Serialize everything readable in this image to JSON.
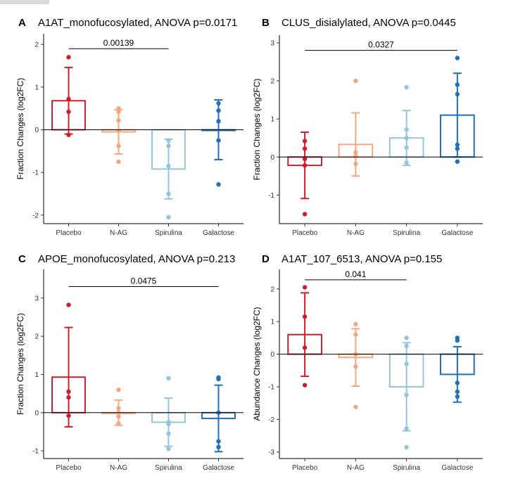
{
  "colors": {
    "Placebo": "#c8202f",
    "N-AG": "#f4a582",
    "Spirulina": "#92c5de",
    "Galactose": "#2171b5"
  },
  "chart_data": [
    {
      "type": "bar",
      "panel_letter": "A",
      "title": "A1AT_monofucosylated, ANOVA p=0.0171",
      "xlabel": "",
      "ylabel": "Fraction Changes (log2FC)",
      "categories": [
        "Placebo",
        "N-AG",
        "Spirulina",
        "Galactose"
      ],
      "ylim": [
        -2.2,
        2.25
      ],
      "yticks": [
        -2,
        -1,
        0,
        1,
        2
      ],
      "values": [
        0.68,
        -0.05,
        -0.92,
        0.0
      ],
      "errors": [
        0.78,
        0.52,
        0.7,
        0.7
      ],
      "points": [
        [
          1.7,
          0.72,
          0.42,
          -0.12
        ],
        [
          0.5,
          0.42,
          0.22,
          -0.02,
          -0.38,
          -0.75
        ],
        [
          -0.25,
          -0.38,
          -0.85,
          -1.5,
          -2.05
        ],
        [
          0.62,
          0.45,
          0.2,
          -0.25,
          -1.28
        ]
      ],
      "comparison": {
        "from": 0,
        "to": 2,
        "label": "0.00139",
        "y": 1.9
      }
    },
    {
      "type": "bar",
      "panel_letter": "B",
      "title": "CLUS_disialylated, ANOVA p=0.0445",
      "xlabel": "",
      "ylabel": "Fraction Changes (log2FC)",
      "categories": [
        "Placebo",
        "N-AG",
        "Spirulina",
        "Galactose"
      ],
      "ylim": [
        -1.75,
        3.2
      ],
      "yticks": [
        -1,
        0,
        1,
        2,
        3
      ],
      "values": [
        -0.22,
        0.33,
        0.5,
        1.1
      ],
      "errors": [
        0.87,
        0.83,
        0.72,
        1.1
      ],
      "points": [
        [
          0.42,
          0.22,
          -0.05,
          -0.22,
          -1.5
        ],
        [
          2.0,
          0.12,
          0.02,
          -0.18
        ],
        [
          1.83,
          0.72,
          0.5,
          0.25,
          -0.15
        ],
        [
          2.6,
          1.9,
          1.65,
          0.32,
          0.22,
          -0.12
        ]
      ],
      "comparison": {
        "from": 0,
        "to": 3,
        "label": "0.0327",
        "y": 2.8
      }
    },
    {
      "type": "bar",
      "panel_letter": "C",
      "title": "APOE_monofucosylated, ANOVA p=0.213",
      "xlabel": "",
      "ylabel": "Fraction Changes (log2FC)",
      "categories": [
        "Placebo",
        "N-AG",
        "Spirulina",
        "Galactose"
      ],
      "ylim": [
        -1.2,
        3.75
      ],
      "yticks": [
        -1,
        0,
        1,
        2,
        3
      ],
      "values": [
        0.93,
        0.0,
        -0.25,
        -0.15
      ],
      "errors": [
        1.3,
        0.33,
        0.63,
        0.87
      ],
      "points": [
        [
          2.82,
          0.55,
          0.4,
          -0.08
        ],
        [
          0.6,
          0.12,
          0.0,
          -0.1,
          -0.28
        ],
        [
          0.9,
          -0.25,
          -0.3,
          -0.55,
          -0.95
        ],
        [
          0.92,
          0.88,
          0.0,
          -0.75,
          -0.9
        ]
      ],
      "comparison": {
        "from": 0,
        "to": 3,
        "label": "0.0475",
        "y": 3.3
      }
    },
    {
      "type": "bar",
      "panel_letter": "D",
      "title": "A1AT_107_6513, ANOVA p=0.155",
      "xlabel": "",
      "ylabel": "Abundance Changes (log2FC)",
      "categories": [
        "Placebo",
        "N-AG",
        "Spirulina",
        "Galactose"
      ],
      "ylim": [
        -3.2,
        2.6
      ],
      "yticks": [
        -3,
        -2,
        -1,
        0,
        1,
        2
      ],
      "values": [
        0.6,
        -0.1,
        -1.0,
        -0.62
      ],
      "errors": [
        1.28,
        0.88,
        1.35,
        0.85
      ],
      "points": [
        [
          2.05,
          1.15,
          0.2,
          -0.95
        ],
        [
          0.92,
          0.6,
          0.0,
          -0.38,
          -1.62
        ],
        [
          0.5,
          0.25,
          -0.3,
          -1.25,
          -2.28,
          -2.85
        ],
        [
          0.5,
          0.42,
          -0.88,
          -1.15,
          -1.3
        ]
      ],
      "comparison": {
        "from": 0,
        "to": 2,
        "label": "0.041",
        "y": 2.28
      }
    }
  ]
}
